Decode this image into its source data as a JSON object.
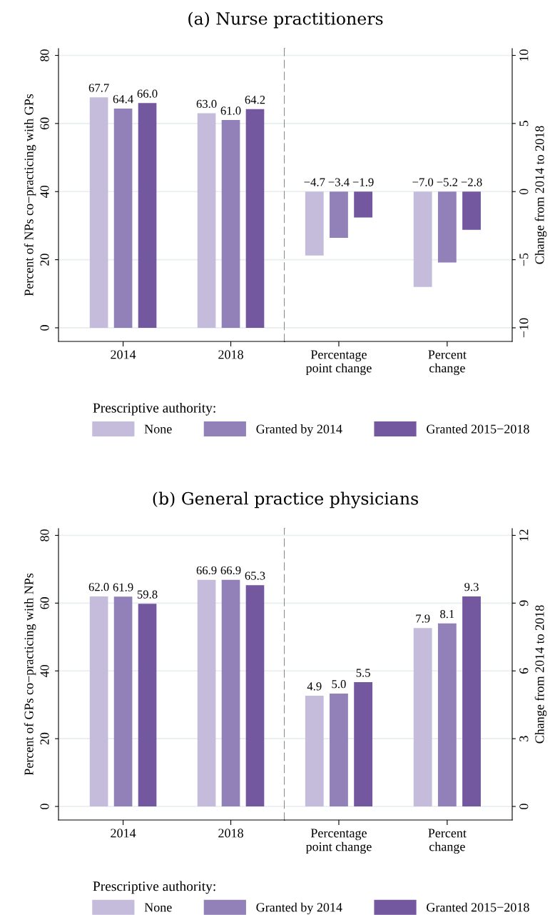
{
  "chart_data": [
    {
      "type": "bar",
      "title": "(a) Nurse practitioners",
      "ylabel": "Percent of NPs co−practicing with GPs",
      "legend_title": "Prescriptive authority:",
      "categories": [
        "2014",
        "2018"
      ],
      "series": [
        {
          "name": "None",
          "color": "#c5bcdc",
          "values": [
            67.7,
            63.0
          ],
          "value_labels": [
            "67.7",
            "63.0"
          ]
        },
        {
          "name": "Granted by 2014",
          "color": "#9181b8",
          "values": [
            64.4,
            61.0
          ],
          "value_labels": [
            "64.4",
            "61.0"
          ]
        },
        {
          "name": "Granted 2015−2018",
          "color": "#73579f",
          "values": [
            66.0,
            64.2
          ],
          "value_labels": [
            "66.0",
            "64.2"
          ]
        }
      ],
      "ylim": [
        -4,
        82
      ],
      "yticks": [
        0,
        20,
        40,
        60,
        80
      ],
      "grid": "y",
      "legend": "bottom"
    },
    {
      "type": "bar",
      "y2label": "Change from 2014 to 2018",
      "categories": [
        "Percentage\npoint change",
        "Percent\nchange"
      ],
      "series": [
        {
          "color": "#c5bcdc",
          "axis": "y2",
          "values": [
            -4.7,
            -7.0
          ],
          "value_labels": [
            "−4.7",
            "−7.0"
          ]
        },
        {
          "color": "#9181b8",
          "axis": "y2",
          "values": [
            -3.4,
            -5.2
          ],
          "value_labels": [
            "−3.4",
            "−5.2"
          ]
        },
        {
          "color": "#73579f",
          "axis": "y2",
          "values": [
            -1.9,
            -2.8
          ],
          "value_labels": [
            "−1.9",
            "−2.8"
          ]
        }
      ],
      "y2lim": [
        -11,
        10.5
      ],
      "y2ticks": [
        {
          "value": -10,
          "label": "−10"
        },
        {
          "value": -5,
          "label": "−5"
        },
        0,
        5,
        10
      ],
      "grid": "y"
    },
    {
      "type": "bar",
      "title": "(b) General practice physicians",
      "ylabel": "Percent of GPs co−practicing with NPs",
      "legend_title": "Prescriptive authority:",
      "categories": [
        "2014",
        "2018"
      ],
      "series": [
        {
          "name": "None",
          "color": "#c5bcdc",
          "values": [
            62.0,
            66.9
          ],
          "value_labels": [
            "62.0",
            "66.9"
          ]
        },
        {
          "name": "Granted by 2014",
          "color": "#9181b8",
          "values": [
            61.9,
            66.9
          ],
          "value_labels": [
            "61.9",
            "66.9"
          ]
        },
        {
          "name": "Granted 2015−2018",
          "color": "#73579f",
          "values": [
            59.8,
            65.3
          ],
          "value_labels": [
            "59.8",
            "65.3"
          ]
        }
      ],
      "ylim": [
        -4,
        82
      ],
      "yticks": [
        0,
        20,
        40,
        60,
        80
      ],
      "grid": "y",
      "legend": "bottom"
    },
    {
      "type": "bar",
      "y2label": "Change from 2014 to 2018",
      "categories": [
        "Percentage\npoint change",
        "Percent\nchange"
      ],
      "series": [
        {
          "color": "#c5bcdc",
          "axis": "y2",
          "values": [
            4.9,
            7.9
          ],
          "value_labels": [
            "4.9",
            "7.9"
          ]
        },
        {
          "color": "#9181b8",
          "axis": "y2",
          "values": [
            5.0,
            8.1
          ],
          "value_labels": [
            "5.0",
            "8.1"
          ]
        },
        {
          "color": "#73579f",
          "axis": "y2",
          "values": [
            5.5,
            9.3
          ],
          "value_labels": [
            "5.5",
            "9.3"
          ]
        }
      ],
      "y2lim": [
        -0.6,
        12.3
      ],
      "y2ticks": [
        0,
        3,
        6,
        9,
        12
      ],
      "grid": "y"
    }
  ]
}
